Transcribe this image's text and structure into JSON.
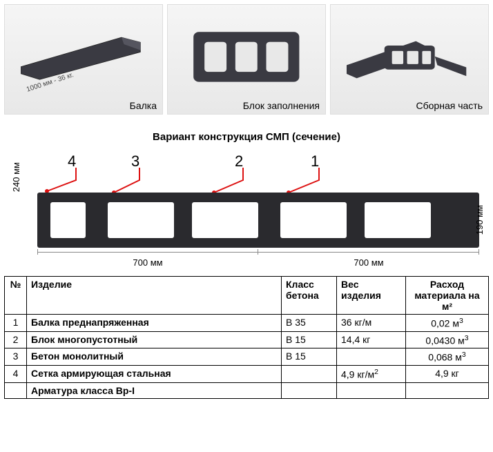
{
  "panels": {
    "beam": {
      "label": "Балка",
      "dim": "1000 мм - 36 кг."
    },
    "block": {
      "label": "Блок заполнения"
    },
    "assembly": {
      "label": "Сборная часть"
    }
  },
  "section_title": "Вариант конструкция СМП (сечение)",
  "callouts": [
    "4",
    "3",
    "2",
    "1"
  ],
  "dims": {
    "left_height": "240 мм",
    "right_height": "190 мм",
    "span1": "700 мм",
    "span2": "700 мм"
  },
  "diagram": {
    "callout_color": "#d11",
    "beam_fill": "#2a2a2e",
    "void_count": 5,
    "void_widths_pct": [
      8,
      16,
      16,
      16,
      16
    ],
    "void_gaps_pct": [
      2,
      4,
      3,
      3,
      4
    ]
  },
  "table": {
    "headers": {
      "num": "№",
      "item": "Изделие",
      "klass": "Класс бетона",
      "ves": "Вес изделия",
      "rash": "Расход материала на м²"
    },
    "rows": [
      {
        "n": "1",
        "item": "Балка преднапряженная",
        "klass": "В 35",
        "ves": "36 кг/м",
        "rash": "0,02 м³"
      },
      {
        "n": "2",
        "item": "Блок многопустотный",
        "klass": "В 15",
        "ves": "14,4 кг",
        "rash": "0,0430 м³"
      },
      {
        "n": "3",
        "item": "Бетон монолитный",
        "klass": "В 15",
        "ves": "",
        "rash": "0,068 м³"
      },
      {
        "n": "4",
        "item": "Сетка армирующая стальная",
        "klass": "",
        "ves": "4,9 кг/м²",
        "rash": "4,9 кг"
      },
      {
        "n": "",
        "item": "Арматура класса Вр-I",
        "klass": "",
        "ves": "",
        "rash": ""
      }
    ]
  }
}
